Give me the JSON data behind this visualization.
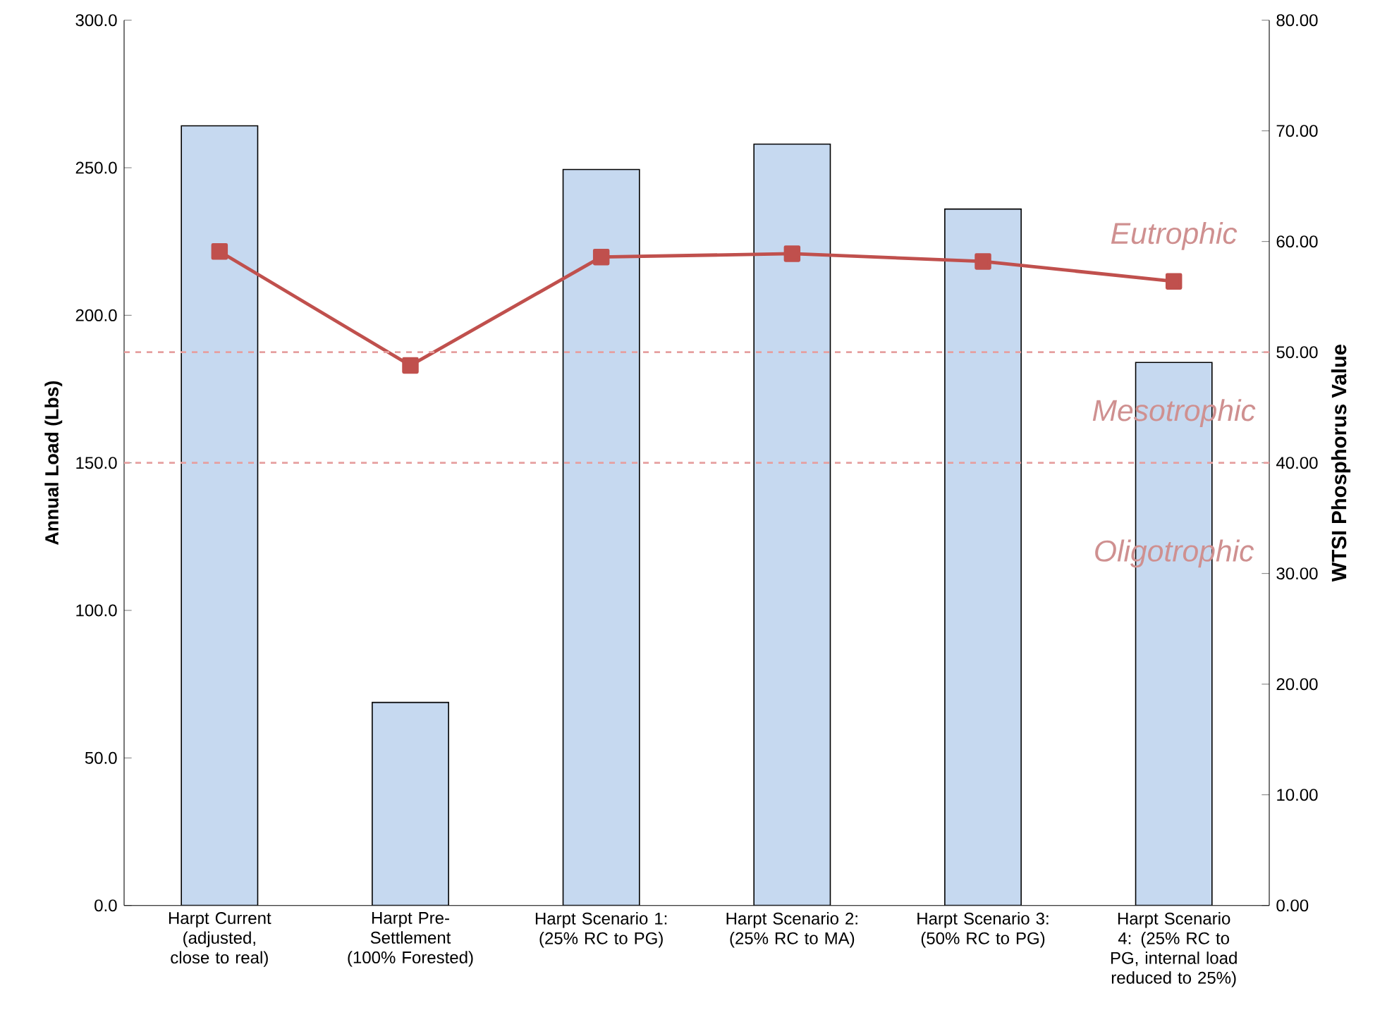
{
  "chart_data": {
    "type": "bar",
    "categories": [
      "Harpt Current (adjusted, close to real)",
      "Harpt Pre-Settlement (100% Forested)",
      "Harpt Scenario 1: (25% RC to PG)",
      "Harpt Scenario 2: (25% RC to MA)",
      "Harpt Scenario 3: (50% RC to PG)",
      "Harpt Scenario 4: (25% RC to PG, internal load reduced to 25%)"
    ],
    "series": [
      {
        "color": "#c6d9f0",
        "values": [
          264.2,
          68.8,
          249.4,
          258.0,
          236.0,
          184.0
        ]
      },
      {
        "type": "line",
        "axis": "y2",
        "color": "#c0504d",
        "marker": "square",
        "values": [
          59.1,
          48.8,
          58.6,
          58.9,
          58.2,
          56.4
        ]
      }
    ],
    "ylabel": "Annual Load (Lbs)",
    "y2label": "WTSI Phosphorus Value",
    "ylim": [
      0,
      300
    ],
    "yticks": [
      {
        "value": 0,
        "label": "0.0"
      },
      {
        "value": 50,
        "label": "50.0"
      },
      {
        "value": 100,
        "label": "100.0"
      },
      {
        "value": 150,
        "label": "150.0"
      },
      {
        "value": 200,
        "label": "200.0"
      },
      {
        "value": 250,
        "label": "250.0"
      },
      {
        "value": 300,
        "label": "300.0"
      }
    ],
    "y2lim": [
      0,
      80
    ],
    "y2ticks": [
      {
        "value": 0,
        "label": "0.00"
      },
      {
        "value": 10,
        "label": "10.00"
      },
      {
        "value": 20,
        "label": "20.00"
      },
      {
        "value": 30,
        "label": "30.00"
      },
      {
        "value": 40,
        "label": "40.00"
      },
      {
        "value": 50,
        "label": "50.00"
      },
      {
        "value": 60,
        "label": "60.00"
      },
      {
        "value": 70,
        "label": "70.00"
      },
      {
        "value": 80,
        "label": "80.00"
      }
    ],
    "ref_lines": [
      {
        "axis": "y2",
        "value": 50,
        "color": "#e6a0a0",
        "line_style": "dashed"
      },
      {
        "axis": "y2",
        "value": 40,
        "color": "#e6a0a0",
        "line_style": "dashed"
      }
    ],
    "annotations": [
      "Eutrophic",
      "Mesotrophic",
      "Oligotrophic"
    ]
  }
}
